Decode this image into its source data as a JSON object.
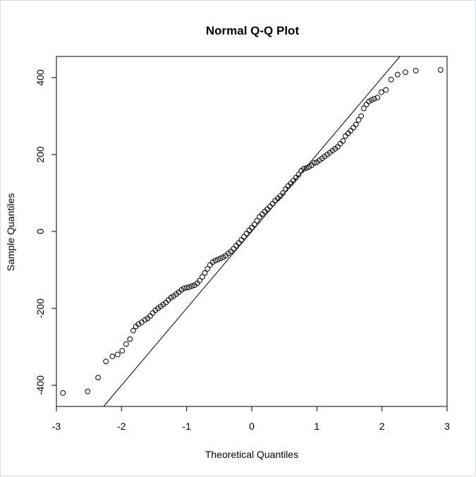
{
  "chart_data": {
    "type": "scatter",
    "title": "Normal Q-Q Plot",
    "xlabel": "Theoretical Quantiles",
    "ylabel": "Sample Quantiles",
    "xlim": [
      -3.0,
      3.0
    ],
    "ylim": [
      -455,
      455
    ],
    "xticks": [
      "-3",
      "-2",
      "-1",
      "0",
      "1",
      "2",
      "3"
    ],
    "yticks": [
      "-400",
      "-200",
      "0",
      "200",
      "400"
    ],
    "grid": false,
    "legend": "none",
    "reference_line": {
      "intercept": 0,
      "slope": 200
    },
    "x": [
      -2.9,
      -2.52,
      -2.36,
      -2.24,
      -2.14,
      -2.06,
      -1.99,
      -1.93,
      -1.87,
      -1.82,
      -1.78,
      -1.74,
      -1.69,
      -1.64,
      -1.6,
      -1.56,
      -1.52,
      -1.48,
      -1.44,
      -1.4,
      -1.36,
      -1.32,
      -1.28,
      -1.24,
      -1.2,
      -1.16,
      -1.12,
      -1.08,
      -1.04,
      -1.0,
      -0.96,
      -0.92,
      -0.88,
      -0.84,
      -0.8,
      -0.76,
      -0.72,
      -0.68,
      -0.64,
      -0.6,
      -0.56,
      -0.52,
      -0.48,
      -0.44,
      -0.4,
      -0.36,
      -0.32,
      -0.28,
      -0.24,
      -0.2,
      -0.16,
      -0.12,
      -0.08,
      -0.04,
      0.0,
      0.04,
      0.08,
      0.12,
      0.16,
      0.2,
      0.24,
      0.28,
      0.32,
      0.36,
      0.4,
      0.44,
      0.48,
      0.52,
      0.56,
      0.6,
      0.64,
      0.68,
      0.72,
      0.76,
      0.8,
      0.84,
      0.88,
      0.92,
      0.96,
      1.0,
      1.04,
      1.08,
      1.12,
      1.16,
      1.2,
      1.24,
      1.28,
      1.32,
      1.36,
      1.4,
      1.44,
      1.48,
      1.52,
      1.56,
      1.6,
      1.64,
      1.68,
      1.72,
      1.76,
      1.8,
      1.84,
      1.88,
      1.93,
      1.99,
      2.06,
      2.14,
      2.24,
      2.36,
      2.52,
      2.9
    ],
    "y": [
      -420,
      -416,
      -380,
      -338,
      -325,
      -320,
      -310,
      -293,
      -280,
      -258,
      -247,
      -241,
      -236,
      -230,
      -226,
      -220,
      -212,
      -205,
      -200,
      -195,
      -190,
      -185,
      -178,
      -172,
      -168,
      -163,
      -158,
      -152,
      -148,
      -146,
      -145,
      -142,
      -140,
      -135,
      -128,
      -118,
      -108,
      -97,
      -87,
      -80,
      -76,
      -73,
      -70,
      -67,
      -63,
      -57,
      -52,
      -45,
      -37,
      -30,
      -22,
      -14,
      -5,
      3,
      10,
      18,
      28,
      38,
      45,
      52,
      58,
      65,
      72,
      80,
      86,
      92,
      100,
      110,
      118,
      125,
      132,
      140,
      148,
      158,
      163,
      165,
      168,
      172,
      178,
      180,
      185,
      190,
      195,
      200,
      205,
      210,
      215,
      220,
      228,
      235,
      248,
      255,
      262,
      270,
      278,
      290,
      300,
      320,
      330,
      338,
      342,
      345,
      348,
      362,
      368,
      395,
      408,
      414,
      418,
      420
    ]
  }
}
